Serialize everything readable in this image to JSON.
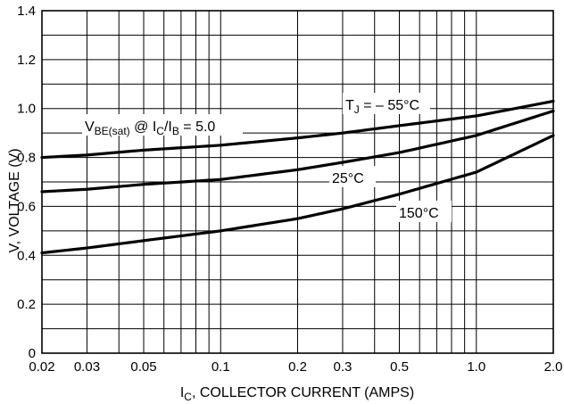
{
  "chart_data": {
    "type": "line",
    "xscale": "log",
    "xlim": [
      0.02,
      2.0
    ],
    "ylim": [
      0,
      1.4
    ],
    "x_ticks": [
      {
        "v": 0.02,
        "label": "0.02"
      },
      {
        "v": 0.03,
        "label": "0.03"
      },
      {
        "v": 0.05,
        "label": "0.05"
      },
      {
        "v": 0.1,
        "label": "0.1"
      },
      {
        "v": 0.2,
        "label": "0.2"
      },
      {
        "v": 0.3,
        "label": "0.3"
      },
      {
        "v": 0.5,
        "label": "0.5"
      },
      {
        "v": 1.0,
        "label": "1.0"
      },
      {
        "v": 2.0,
        "label": "2.0"
      }
    ],
    "y_ticks": [
      {
        "v": 0,
        "label": "0"
      },
      {
        "v": 0.2,
        "label": "0.2"
      },
      {
        "v": 0.4,
        "label": "0.4"
      },
      {
        "v": 0.6,
        "label": "0.6"
      },
      {
        "v": 0.8,
        "label": "0.8"
      },
      {
        "v": 1.0,
        "label": "1.0"
      },
      {
        "v": 1.2,
        "label": "1.2"
      },
      {
        "v": 1.4,
        "label": "1.4"
      }
    ],
    "x_grid": [
      0.02,
      0.03,
      0.04,
      0.05,
      0.06,
      0.07,
      0.08,
      0.09,
      0.1,
      0.2,
      0.3,
      0.4,
      0.5,
      0.6,
      0.7,
      0.8,
      0.9,
      1.0,
      2.0
    ],
    "y_grid_step": 0.1,
    "grid": true,
    "xlabel": {
      "main": "I",
      "sub": "C",
      "rest": ", COLLECTOR CURRENT (AMPS)"
    },
    "ylabel": "V, VOLTAGE (V)",
    "title_annotation": {
      "v": "V",
      "sub": "BE(sat)",
      "mid": " @ I",
      "sub2": "C",
      "slash": "/I",
      "sub3": "B",
      "end": " = 5.0"
    },
    "series": [
      {
        "id": "tj-minus-55",
        "label": {
          "t": "T",
          "sub": "J",
          "rest": " = – 55°C"
        },
        "x": [
          0.02,
          0.03,
          0.05,
          0.1,
          0.2,
          0.3,
          0.5,
          1.0,
          2.0
        ],
        "y": [
          0.8,
          0.81,
          0.83,
          0.85,
          0.88,
          0.9,
          0.93,
          0.97,
          1.03
        ]
      },
      {
        "id": "t-25",
        "label": {
          "t": "25°C",
          "sub": "",
          "rest": ""
        },
        "x": [
          0.02,
          0.03,
          0.05,
          0.1,
          0.2,
          0.3,
          0.5,
          1.0,
          2.0
        ],
        "y": [
          0.66,
          0.67,
          0.69,
          0.71,
          0.75,
          0.78,
          0.82,
          0.89,
          0.99
        ]
      },
      {
        "id": "t-150",
        "label": {
          "t": "150°C",
          "sub": "",
          "rest": ""
        },
        "x": [
          0.02,
          0.03,
          0.05,
          0.1,
          0.2,
          0.3,
          0.5,
          1.0,
          2.0
        ],
        "y": [
          0.41,
          0.43,
          0.46,
          0.5,
          0.55,
          0.59,
          0.65,
          0.74,
          0.89
        ]
      }
    ]
  }
}
